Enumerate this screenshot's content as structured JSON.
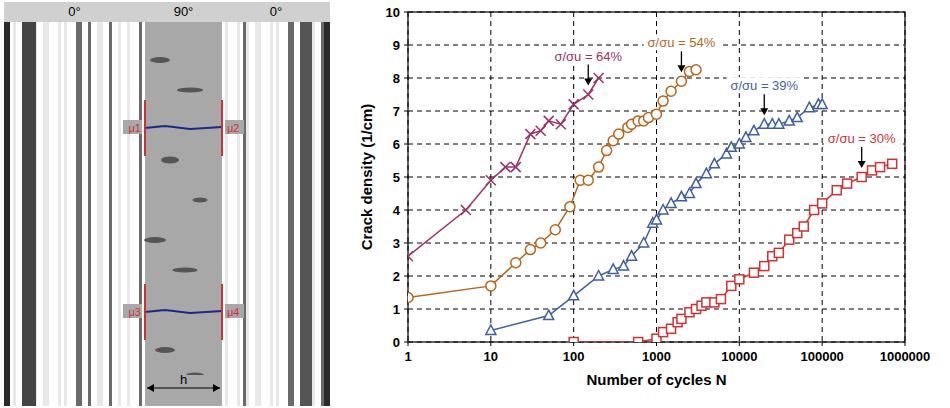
{
  "chart_data": {
    "type": "line",
    "x_label": "Number of cycles N",
    "y_label": "Crack density (1/cm)",
    "log": "x",
    "grid": true,
    "xlim": [
      1,
      1000000
    ],
    "xticks": [
      1,
      10,
      100,
      1000,
      10000,
      100000,
      1000000
    ],
    "ylim": [
      0,
      10
    ],
    "yticks": [
      0,
      1,
      2,
      3,
      4,
      5,
      6,
      7,
      8,
      9,
      10
    ],
    "series": [
      {
        "color": "#993366",
        "marker": "x",
        "x": [
          1,
          5,
          10,
          15,
          20,
          30,
          40,
          50,
          70,
          100,
          150,
          200
        ],
        "values": [
          2.6,
          4.0,
          4.9,
          5.3,
          5.3,
          6.3,
          6.4,
          6.7,
          6.6,
          7.2,
          7.5,
          8.0
        ]
      },
      {
        "color": "#b5651d",
        "marker": "circle",
        "x": [
          1,
          10,
          20,
          30,
          40,
          60,
          90,
          120,
          150,
          200,
          250,
          300,
          350,
          450,
          500,
          600,
          700,
          800,
          1000,
          1200,
          1500,
          2000,
          2500,
          3000
        ],
        "values": [
          1.35,
          1.7,
          2.4,
          2.8,
          3.0,
          3.4,
          4.1,
          4.9,
          4.9,
          5.3,
          5.8,
          6.1,
          6.3,
          6.5,
          6.6,
          6.7,
          6.7,
          6.8,
          6.9,
          7.3,
          7.6,
          7.9,
          8.2,
          8.25
        ]
      },
      {
        "color": "#3f5f9f",
        "marker": "triangle",
        "x": [
          10,
          50,
          100,
          200,
          300,
          400,
          500,
          700,
          900,
          1000,
          1200,
          1500,
          2000,
          2500,
          3000,
          4000,
          5000,
          7000,
          8000,
          10000,
          12000,
          15000,
          20000,
          25000,
          30000,
          40000,
          50000,
          70000,
          90000,
          100000
        ],
        "values": [
          0.35,
          0.8,
          1.4,
          2.0,
          2.2,
          2.3,
          2.6,
          3.0,
          3.6,
          3.7,
          4.0,
          4.2,
          4.4,
          4.5,
          4.8,
          5.1,
          5.4,
          5.7,
          5.9,
          6.0,
          6.2,
          6.4,
          6.6,
          6.6,
          6.6,
          6.7,
          6.8,
          7.1,
          7.2,
          7.2
        ]
      },
      {
        "color": "#cc3333",
        "marker": "square",
        "x": [
          100,
          600,
          1000,
          1200,
          1500,
          1800,
          2000,
          2500,
          3000,
          3500,
          4000,
          5000,
          6000,
          8000,
          10000,
          15000,
          20000,
          25000,
          30000,
          40000,
          50000,
          60000,
          80000,
          100000,
          150000,
          200000,
          300000,
          400000,
          500000,
          700000
        ],
        "values": [
          0,
          0,
          0.1,
          0.3,
          0.4,
          0.6,
          0.7,
          0.9,
          1.0,
          1.1,
          1.2,
          1.2,
          1.3,
          1.7,
          1.9,
          2.1,
          2.3,
          2.6,
          2.7,
          3.1,
          3.3,
          3.5,
          4.0,
          4.2,
          4.6,
          4.8,
          5.0,
          5.2,
          5.3,
          5.4
        ]
      }
    ],
    "annotations": [
      {
        "text": "σ/σu = 64%",
        "x": 150,
        "y": 7.5,
        "color": "#993366"
      },
      {
        "text": "σ/σu = 54%",
        "x": 2000,
        "y": 7.9,
        "color": "#b5651d"
      },
      {
        "text": "σ/σu = 39%",
        "x": 20000,
        "y": 6.6,
        "color": "#3f5f9f"
      },
      {
        "text": "σ/σu = 30%",
        "x": 300000,
        "y": 5.0,
        "color": "#cc3333"
      }
    ]
  },
  "micrograph": {
    "layer_labels": [
      "0°",
      "90°",
      "0°"
    ],
    "crack_markers": [
      "μ1",
      "μ2",
      "μ3",
      "μ4"
    ],
    "thickness_label": "h"
  }
}
